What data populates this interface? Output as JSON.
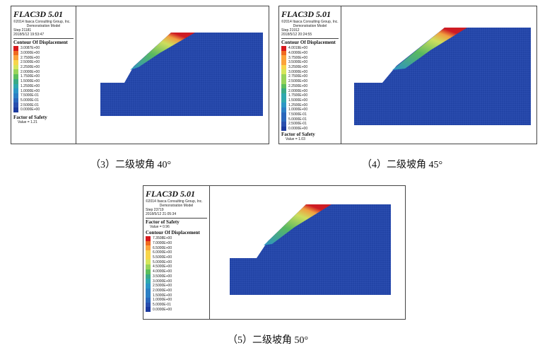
{
  "figures": [
    {
      "id": "fig3",
      "brand": "FLAC3D 5.01",
      "copyright": "©2014 Itasca Consulting Group, Inc.",
      "model_name": "Demonstration Model",
      "step": "Step 21181",
      "timestamp": "2018/5/12 19:53:47",
      "contour_title": "Contour Of Displacement",
      "contour_levels": [
        "3.0087E+00",
        "3.0000E+00",
        "2.7500E+00",
        "2.5000E+00",
        "2.2500E+00",
        "2.0000E+00",
        "1.7500E+00",
        "1.5000E+00",
        "1.2500E+00",
        "1.0000E+00",
        "7.5000E-01",
        "5.0000E-01",
        "2.5000E-01",
        "0.0000E+00"
      ],
      "fos_title": "Factor of Safety",
      "fos_value": "Value = 1.21",
      "caption": "（3）二级坡角 40°"
    },
    {
      "id": "fig4",
      "brand": "FLAC3D 5.01",
      "copyright": "©2014 Itasca Consulting Group, Inc.",
      "model_name": "Demonstration Model",
      "step": "Step 21912",
      "timestamp": "2018/5/12 20:24:55",
      "contour_title": "Contour Of Displacement",
      "contour_levels": [
        "4.0019E+00",
        "4.0000E+00",
        "3.7500E+00",
        "3.5000E+00",
        "3.2500E+00",
        "3.0000E+00",
        "2.7500E+00",
        "2.5000E+00",
        "2.2500E+00",
        "2.0000E+00",
        "1.7500E+00",
        "1.5000E+00",
        "1.2500E+00",
        "1.0000E+00",
        "7.5000E-01",
        "5.0000E-01",
        "2.5000E-01",
        "0.0000E+00"
      ],
      "fos_title": "Factor of Safety",
      "fos_value": "Value = 1.03",
      "caption": "（4）二级坡角 45°"
    },
    {
      "id": "fig5",
      "brand": "FLAC3D 5.01",
      "copyright": "©2014 Itasca Consulting Group, Inc.",
      "model_name": "Demonstration Model",
      "step": "Step 23719",
      "timestamp": "2018/5/12 21:05:34",
      "contour_title": "Contour Of Displacement",
      "contour_levels": [
        "7.3508E+00",
        "7.0000E+00",
        "6.5000E+00",
        "6.0000E+00",
        "5.5000E+00",
        "5.0000E+00",
        "4.5000E+00",
        "4.0000E+00",
        "3.5000E+00",
        "3.0000E+00",
        "2.5000E+00",
        "2.0000E+00",
        "1.5000E+00",
        "1.0000E+00",
        "5.0000E-01",
        "0.0000E+00"
      ],
      "fos_title": "Factor of Safety",
      "fos_value": "Value = 0.96",
      "caption": "（5）二级坡角 50°"
    }
  ],
  "colors": {
    "soil": "#2244a6",
    "mesh": "#3a5dbf",
    "ramp": [
      "#d7191c",
      "#f06a20",
      "#fba33a",
      "#f7d54a",
      "#d6e65a",
      "#98d45a",
      "#5cbf5c",
      "#3aaa86",
      "#2fa8ae",
      "#2c96c6",
      "#2c7fc4",
      "#2a66bb",
      "#2a4fae",
      "#1c3a9e"
    ]
  }
}
